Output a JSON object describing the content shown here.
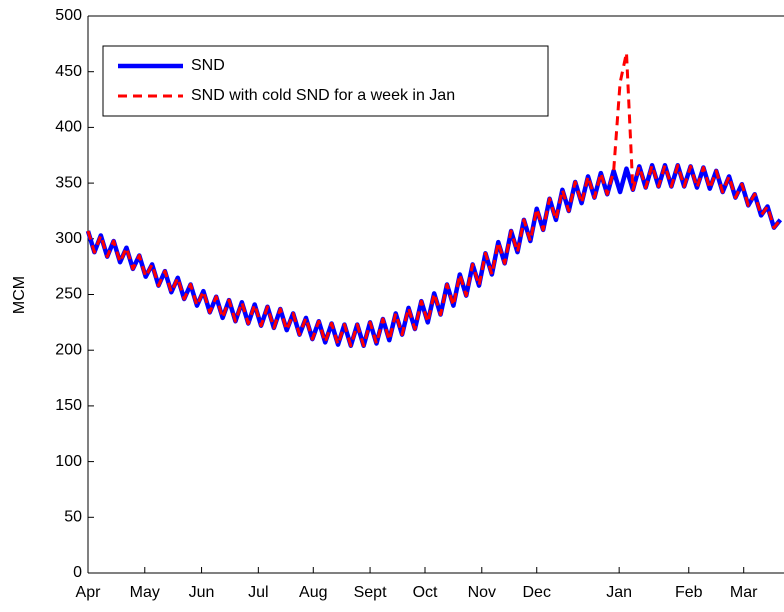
{
  "chart_data": {
    "type": "line",
    "ylabel": "MCM",
    "x": [
      0,
      3.5,
      7,
      10.5,
      14,
      17.5,
      21,
      24.5,
      28,
      31.5,
      35,
      38.5,
      42,
      45.5,
      49,
      52.5,
      56,
      59.5,
      63,
      66.5,
      70,
      73.5,
      77,
      80.5,
      84,
      87.5,
      91,
      94.5,
      98,
      101.5,
      105,
      108.5,
      112,
      115.5,
      119,
      122.5,
      126,
      129.5,
      133,
      136.5,
      140,
      143.5,
      147,
      150.5,
      154,
      157.5,
      161,
      164.5,
      168,
      171.5,
      175,
      178.5,
      182,
      185.5,
      189,
      192.5,
      196,
      199.5,
      203,
      206.5,
      210,
      213.5,
      217,
      220.5,
      224,
      227.5,
      231,
      234.5,
      238,
      241.5,
      245,
      248.5,
      252,
      255.5,
      259,
      262.5,
      266,
      269.5,
      273,
      276.5,
      280,
      283.5,
      287,
      290.5,
      294,
      297.5,
      301,
      304.5,
      308,
      311.5,
      315,
      318.5,
      322,
      325.5,
      329,
      332.5,
      336,
      339.5,
      343,
      346.5,
      350,
      353.5,
      357,
      360.5,
      364,
      367.5,
      371,
      374.5,
      378
    ],
    "series": [
      {
        "name": "SND",
        "color": "#0000ff",
        "dashed": false,
        "values": [
          307,
          288,
          303,
          284,
          298,
          279,
          292,
          273,
          285,
          266,
          277,
          258,
          271,
          252,
          265,
          246,
          259,
          240,
          253,
          234,
          248,
          229,
          245,
          226,
          243,
          224,
          241,
          222,
          239,
          220,
          237,
          218,
          233,
          214,
          229,
          210,
          226,
          207,
          224,
          205,
          223,
          204,
          223,
          204,
          225,
          206,
          228,
          209,
          233,
          214,
          238,
          219,
          244,
          225,
          251,
          232,
          259,
          240,
          268,
          249,
          277,
          258,
          287,
          268,
          297,
          278,
          307,
          288,
          317,
          298,
          327,
          308,
          336,
          317,
          344,
          325,
          351,
          332,
          356,
          337,
          359,
          340,
          361,
          342,
          363,
          344,
          365,
          346,
          366,
          347,
          366,
          347,
          366,
          347,
          365,
          346,
          364,
          345,
          361,
          342,
          356,
          337,
          349,
          330,
          340,
          321,
          329,
          310,
          317
        ]
      },
      {
        "name": "SND with cold SND for a week in Jan",
        "color": "#ff0000",
        "dashed": true,
        "values": [
          307,
          288,
          303,
          284,
          298,
          279,
          292,
          273,
          285,
          266,
          277,
          258,
          271,
          252,
          265,
          246,
          259,
          240,
          253,
          234,
          248,
          229,
          245,
          226,
          243,
          224,
          241,
          222,
          239,
          220,
          237,
          218,
          233,
          214,
          229,
          210,
          226,
          207,
          224,
          205,
          223,
          204,
          223,
          204,
          225,
          206,
          228,
          209,
          233,
          214,
          238,
          219,
          244,
          225,
          251,
          232,
          259,
          240,
          268,
          249,
          277,
          258,
          287,
          268,
          297,
          278,
          307,
          288,
          317,
          298,
          327,
          308,
          336,
          317,
          344,
          325,
          351,
          332,
          356,
          337,
          359,
          340,
          361,
          440,
          467,
          344,
          365,
          346,
          366,
          347,
          366,
          347,
          366,
          347,
          365,
          346,
          364,
          345,
          361,
          342,
          356,
          337,
          349,
          330,
          340,
          321,
          329,
          310,
          317
        ]
      }
    ],
    "xlim": [
      0,
      380
    ],
    "xticks": [
      {
        "value": 0,
        "label": "Apr"
      },
      {
        "value": 31,
        "label": "May"
      },
      {
        "value": 62,
        "label": "Jun"
      },
      {
        "value": 93,
        "label": "Jul"
      },
      {
        "value": 123,
        "label": "Aug"
      },
      {
        "value": 154,
        "label": "Sept"
      },
      {
        "value": 184,
        "label": "Oct"
      },
      {
        "value": 215,
        "label": "Nov"
      },
      {
        "value": 245,
        "label": "Dec"
      },
      {
        "value": 290,
        "label": "Jan"
      },
      {
        "value": 328,
        "label": "Feb"
      },
      {
        "value": 358,
        "label": "Mar"
      }
    ],
    "ylim": [
      0,
      500
    ],
    "yticks": [
      0,
      50,
      100,
      150,
      200,
      250,
      300,
      350,
      400,
      450,
      500
    ],
    "legend": "upper left"
  }
}
